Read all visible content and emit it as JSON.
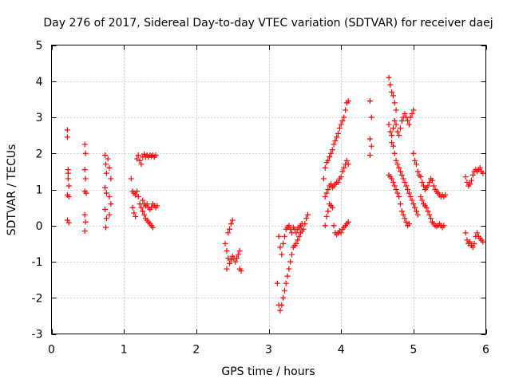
{
  "chart_data": {
    "type": "scatter",
    "title": "Day 276 of 2017, Sidereal Day-to-day VTEC variation (SDTVAR) for receiver daej",
    "xlabel": "GPS time / hours",
    "ylabel": "SDTVAR / TECUs",
    "xlim": [
      0,
      6
    ],
    "ylim": [
      -3,
      5
    ],
    "xticks": [
      0,
      1,
      2,
      3,
      4,
      5,
      6
    ],
    "yticks": [
      -3,
      -2,
      -1,
      0,
      1,
      2,
      3,
      4,
      5
    ],
    "grid": true,
    "marker": "+",
    "color": "#ff0000",
    "series": [
      {
        "name": "SDTVAR",
        "points": [
          [
            0.22,
            2.65
          ],
          [
            0.22,
            2.45
          ],
          [
            0.23,
            1.55
          ],
          [
            0.23,
            1.3
          ],
          [
            0.24,
            1.1
          ],
          [
            0.22,
            0.85
          ],
          [
            0.24,
            0.8
          ],
          [
            0.22,
            0.15
          ],
          [
            0.24,
            0.08
          ],
          [
            0.23,
            1.45
          ],
          [
            0.46,
            2.25
          ],
          [
            0.47,
            2.0
          ],
          [
            0.46,
            1.55
          ],
          [
            0.47,
            1.3
          ],
          [
            0.46,
            0.95
          ],
          [
            0.48,
            0.9
          ],
          [
            0.46,
            0.3
          ],
          [
            0.47,
            0.1
          ],
          [
            0.46,
            -0.15
          ],
          [
            0.74,
            1.95
          ],
          [
            0.75,
            1.7
          ],
          [
            0.76,
            1.45
          ],
          [
            0.74,
            1.05
          ],
          [
            0.76,
            0.9
          ],
          [
            0.74,
            0.45
          ],
          [
            0.76,
            0.2
          ],
          [
            0.75,
            -0.05
          ],
          [
            0.78,
            1.85
          ],
          [
            0.8,
            1.6
          ],
          [
            0.82,
            1.3
          ],
          [
            0.8,
            0.8
          ],
          [
            0.82,
            0.6
          ],
          [
            0.8,
            0.3
          ],
          [
            1.1,
            1.3
          ],
          [
            1.12,
            0.95
          ],
          [
            1.14,
            0.9
          ],
          [
            1.16,
            0.85
          ],
          [
            1.18,
            0.95
          ],
          [
            1.2,
            0.8
          ],
          [
            1.12,
            0.5
          ],
          [
            1.14,
            0.35
          ],
          [
            1.16,
            0.25
          ],
          [
            1.18,
            1.85
          ],
          [
            1.2,
            1.95
          ],
          [
            1.22,
            1.8
          ],
          [
            1.24,
            1.7
          ],
          [
            1.26,
            1.9
          ],
          [
            1.28,
            1.98
          ],
          [
            1.3,
            1.9
          ],
          [
            1.32,
            1.95
          ],
          [
            1.34,
            1.9
          ],
          [
            1.36,
            1.95
          ],
          [
            1.38,
            1.92
          ],
          [
            1.4,
            1.95
          ],
          [
            1.42,
            1.9
          ],
          [
            1.44,
            1.95
          ],
          [
            1.22,
            0.6
          ],
          [
            1.24,
            0.5
          ],
          [
            1.26,
            0.4
          ],
          [
            1.28,
            0.3
          ],
          [
            1.3,
            0.2
          ],
          [
            1.32,
            0.15
          ],
          [
            1.34,
            0.1
          ],
          [
            1.36,
            0.05
          ],
          [
            1.38,
            0.0
          ],
          [
            1.4,
            -0.05
          ],
          [
            1.26,
            0.7
          ],
          [
            1.28,
            0.6
          ],
          [
            1.3,
            0.55
          ],
          [
            1.32,
            0.6
          ],
          [
            1.34,
            0.5
          ],
          [
            1.36,
            0.45
          ],
          [
            1.38,
            0.5
          ],
          [
            1.4,
            0.6
          ],
          [
            1.42,
            0.55
          ],
          [
            1.44,
            0.5
          ],
          [
            1.46,
            0.55
          ],
          [
            2.4,
            -0.5
          ],
          [
            2.42,
            -0.7
          ],
          [
            2.44,
            -0.9
          ],
          [
            2.46,
            -1.05
          ],
          [
            2.48,
            -0.95
          ],
          [
            2.5,
            -0.85
          ],
          [
            2.52,
            -0.9
          ],
          [
            2.54,
            -1.0
          ],
          [
            2.56,
            -0.9
          ],
          [
            2.58,
            -0.8
          ],
          [
            2.6,
            -0.7
          ],
          [
            2.44,
            -0.2
          ],
          [
            2.46,
            -0.1
          ],
          [
            2.48,
            0.05
          ],
          [
            2.5,
            0.15
          ],
          [
            2.42,
            -1.2
          ],
          [
            2.6,
            -1.2
          ],
          [
            2.62,
            -1.25
          ],
          [
            3.12,
            -1.6
          ],
          [
            3.14,
            -2.2
          ],
          [
            3.16,
            -2.35
          ],
          [
            3.18,
            -2.2
          ],
          [
            3.2,
            -2.0
          ],
          [
            3.22,
            -1.8
          ],
          [
            3.24,
            -1.6
          ],
          [
            3.26,
            -1.4
          ],
          [
            3.28,
            -1.2
          ],
          [
            3.3,
            -1.0
          ],
          [
            3.32,
            -0.8
          ],
          [
            3.34,
            -0.6
          ],
          [
            3.36,
            -0.55
          ],
          [
            3.38,
            -0.5
          ],
          [
            3.4,
            -0.4
          ],
          [
            3.42,
            -0.3
          ],
          [
            3.44,
            -0.2
          ],
          [
            3.46,
            -0.15
          ],
          [
            3.48,
            -0.1
          ],
          [
            3.5,
            0.05
          ],
          [
            3.52,
            0.2
          ],
          [
            3.54,
            0.3
          ],
          [
            3.14,
            -0.3
          ],
          [
            3.16,
            -0.6
          ],
          [
            3.18,
            -0.8
          ],
          [
            3.2,
            -0.5
          ],
          [
            3.22,
            -0.3
          ],
          [
            3.24,
            -0.1
          ],
          [
            3.26,
            -0.05
          ],
          [
            3.28,
            0.0
          ],
          [
            3.3,
            -0.1
          ],
          [
            3.32,
            -0.2
          ],
          [
            3.34,
            -0.05
          ],
          [
            3.36,
            -0.1
          ],
          [
            3.38,
            -0.2
          ],
          [
            3.4,
            -0.1
          ],
          [
            3.42,
            -0.05
          ],
          [
            3.44,
            0.0
          ],
          [
            3.46,
            0.05
          ],
          [
            3.76,
            1.3
          ],
          [
            3.78,
            1.6
          ],
          [
            3.8,
            1.75
          ],
          [
            3.82,
            1.8
          ],
          [
            3.84,
            1.9
          ],
          [
            3.86,
            2.0
          ],
          [
            3.88,
            2.1
          ],
          [
            3.9,
            2.25
          ],
          [
            3.92,
            2.35
          ],
          [
            3.94,
            2.45
          ],
          [
            3.96,
            2.55
          ],
          [
            3.98,
            2.7
          ],
          [
            4.0,
            2.8
          ],
          [
            4.02,
            2.9
          ],
          [
            4.04,
            3.0
          ],
          [
            4.06,
            3.2
          ],
          [
            4.08,
            3.4
          ],
          [
            4.1,
            3.45
          ],
          [
            3.78,
            0.8
          ],
          [
            3.8,
            0.9
          ],
          [
            3.82,
            1.0
          ],
          [
            3.84,
            1.1
          ],
          [
            3.86,
            1.15
          ],
          [
            3.88,
            1.05
          ],
          [
            3.9,
            1.1
          ],
          [
            3.92,
            1.15
          ],
          [
            3.94,
            1.2
          ],
          [
            3.96,
            1.2
          ],
          [
            3.98,
            1.3
          ],
          [
            4.0,
            1.35
          ],
          [
            4.02,
            1.5
          ],
          [
            4.04,
            1.6
          ],
          [
            4.06,
            1.7
          ],
          [
            4.08,
            1.8
          ],
          [
            4.1,
            1.7
          ],
          [
            3.78,
            0.0
          ],
          [
            3.8,
            0.25
          ],
          [
            3.82,
            0.4
          ],
          [
            3.84,
            0.6
          ],
          [
            3.86,
            0.55
          ],
          [
            3.88,
            0.5
          ],
          [
            3.9,
            0.0
          ],
          [
            3.92,
            -0.2
          ],
          [
            3.94,
            -0.25
          ],
          [
            3.96,
            -0.2
          ],
          [
            3.98,
            -0.15
          ],
          [
            4.0,
            -0.2
          ],
          [
            4.02,
            -0.1
          ],
          [
            4.04,
            -0.05
          ],
          [
            4.06,
            0.0
          ],
          [
            4.08,
            0.05
          ],
          [
            4.1,
            0.1
          ],
          [
            4.4,
            3.45
          ],
          [
            4.42,
            3.0
          ],
          [
            4.4,
            2.4
          ],
          [
            4.42,
            2.2
          ],
          [
            4.4,
            1.95
          ],
          [
            4.66,
            4.1
          ],
          [
            4.68,
            3.9
          ],
          [
            4.7,
            3.7
          ],
          [
            4.72,
            3.6
          ],
          [
            4.74,
            3.4
          ],
          [
            4.76,
            3.2
          ],
          [
            4.66,
            2.8
          ],
          [
            4.68,
            2.6
          ],
          [
            4.7,
            2.5
          ],
          [
            4.72,
            2.7
          ],
          [
            4.74,
            2.9
          ],
          [
            4.76,
            2.8
          ],
          [
            4.78,
            2.6
          ],
          [
            4.8,
            2.5
          ],
          [
            4.82,
            2.7
          ],
          [
            4.84,
            2.9
          ],
          [
            4.86,
            3.0
          ],
          [
            4.88,
            3.1
          ],
          [
            4.9,
            3.0
          ],
          [
            4.92,
            2.9
          ],
          [
            4.94,
            2.8
          ],
          [
            4.96,
            3.0
          ],
          [
            4.98,
            3.1
          ],
          [
            5.0,
            3.2
          ],
          [
            4.7,
            2.3
          ],
          [
            4.72,
            2.2
          ],
          [
            4.74,
            2.0
          ],
          [
            4.76,
            1.8
          ],
          [
            4.78,
            1.7
          ],
          [
            4.8,
            1.6
          ],
          [
            4.82,
            1.5
          ],
          [
            4.84,
            1.4
          ],
          [
            4.86,
            1.3
          ],
          [
            4.88,
            1.2
          ],
          [
            4.9,
            1.1
          ],
          [
            4.92,
            1.0
          ],
          [
            4.94,
            0.9
          ],
          [
            4.96,
            0.8
          ],
          [
            4.98,
            0.7
          ],
          [
            5.0,
            0.6
          ],
          [
            5.02,
            0.5
          ],
          [
            5.04,
            0.4
          ],
          [
            5.06,
            0.3
          ],
          [
            4.66,
            1.4
          ],
          [
            4.68,
            1.35
          ],
          [
            4.7,
            1.3
          ],
          [
            4.72,
            1.2
          ],
          [
            4.74,
            1.1
          ],
          [
            4.76,
            1.0
          ],
          [
            4.78,
            0.9
          ],
          [
            4.8,
            0.8
          ],
          [
            4.82,
            0.6
          ],
          [
            4.84,
            0.4
          ],
          [
            4.86,
            0.3
          ],
          [
            4.88,
            0.2
          ],
          [
            4.9,
            0.1
          ],
          [
            4.92,
            0.0
          ],
          [
            4.94,
            0.05
          ],
          [
            5.0,
            2.0
          ],
          [
            5.02,
            1.8
          ],
          [
            5.04,
            1.7
          ],
          [
            5.06,
            1.5
          ],
          [
            5.08,
            1.4
          ],
          [
            5.1,
            1.35
          ],
          [
            5.12,
            1.2
          ],
          [
            5.14,
            1.1
          ],
          [
            5.16,
            1.0
          ],
          [
            5.18,
            1.05
          ],
          [
            5.2,
            1.1
          ],
          [
            5.22,
            1.2
          ],
          [
            5.24,
            1.3
          ],
          [
            5.26,
            1.25
          ],
          [
            5.28,
            1.1
          ],
          [
            5.3,
            1.0
          ],
          [
            5.32,
            0.95
          ],
          [
            5.34,
            0.9
          ],
          [
            5.36,
            0.85
          ],
          [
            5.38,
            0.8
          ],
          [
            5.4,
            0.85
          ],
          [
            5.42,
            0.8
          ],
          [
            5.44,
            0.85
          ],
          [
            5.1,
            0.8
          ],
          [
            5.12,
            0.7
          ],
          [
            5.14,
            0.6
          ],
          [
            5.16,
            0.55
          ],
          [
            5.18,
            0.5
          ],
          [
            5.2,
            0.4
          ],
          [
            5.22,
            0.3
          ],
          [
            5.24,
            0.2
          ],
          [
            5.26,
            0.1
          ],
          [
            5.28,
            0.05
          ],
          [
            5.3,
            0.0
          ],
          [
            5.32,
            -0.02
          ],
          [
            5.34,
            0.0
          ],
          [
            5.36,
            0.05
          ],
          [
            5.38,
            0.0
          ],
          [
            5.4,
            -0.05
          ],
          [
            5.42,
            0.0
          ],
          [
            5.72,
            1.35
          ],
          [
            5.74,
            1.2
          ],
          [
            5.76,
            1.1
          ],
          [
            5.78,
            1.15
          ],
          [
            5.8,
            1.25
          ],
          [
            5.82,
            1.4
          ],
          [
            5.84,
            1.5
          ],
          [
            5.86,
            1.55
          ],
          [
            5.88,
            1.5
          ],
          [
            5.9,
            1.55
          ],
          [
            5.92,
            1.6
          ],
          [
            5.94,
            1.5
          ],
          [
            5.96,
            1.45
          ],
          [
            5.72,
            -0.2
          ],
          [
            5.74,
            -0.4
          ],
          [
            5.76,
            -0.5
          ],
          [
            5.78,
            -0.45
          ],
          [
            5.8,
            -0.55
          ],
          [
            5.82,
            -0.6
          ],
          [
            5.84,
            -0.5
          ],
          [
            5.86,
            -0.3
          ],
          [
            5.88,
            -0.2
          ],
          [
            5.9,
            -0.3
          ],
          [
            5.92,
            -0.35
          ],
          [
            5.94,
            -0.4
          ],
          [
            5.96,
            -0.45
          ]
        ]
      }
    ]
  }
}
